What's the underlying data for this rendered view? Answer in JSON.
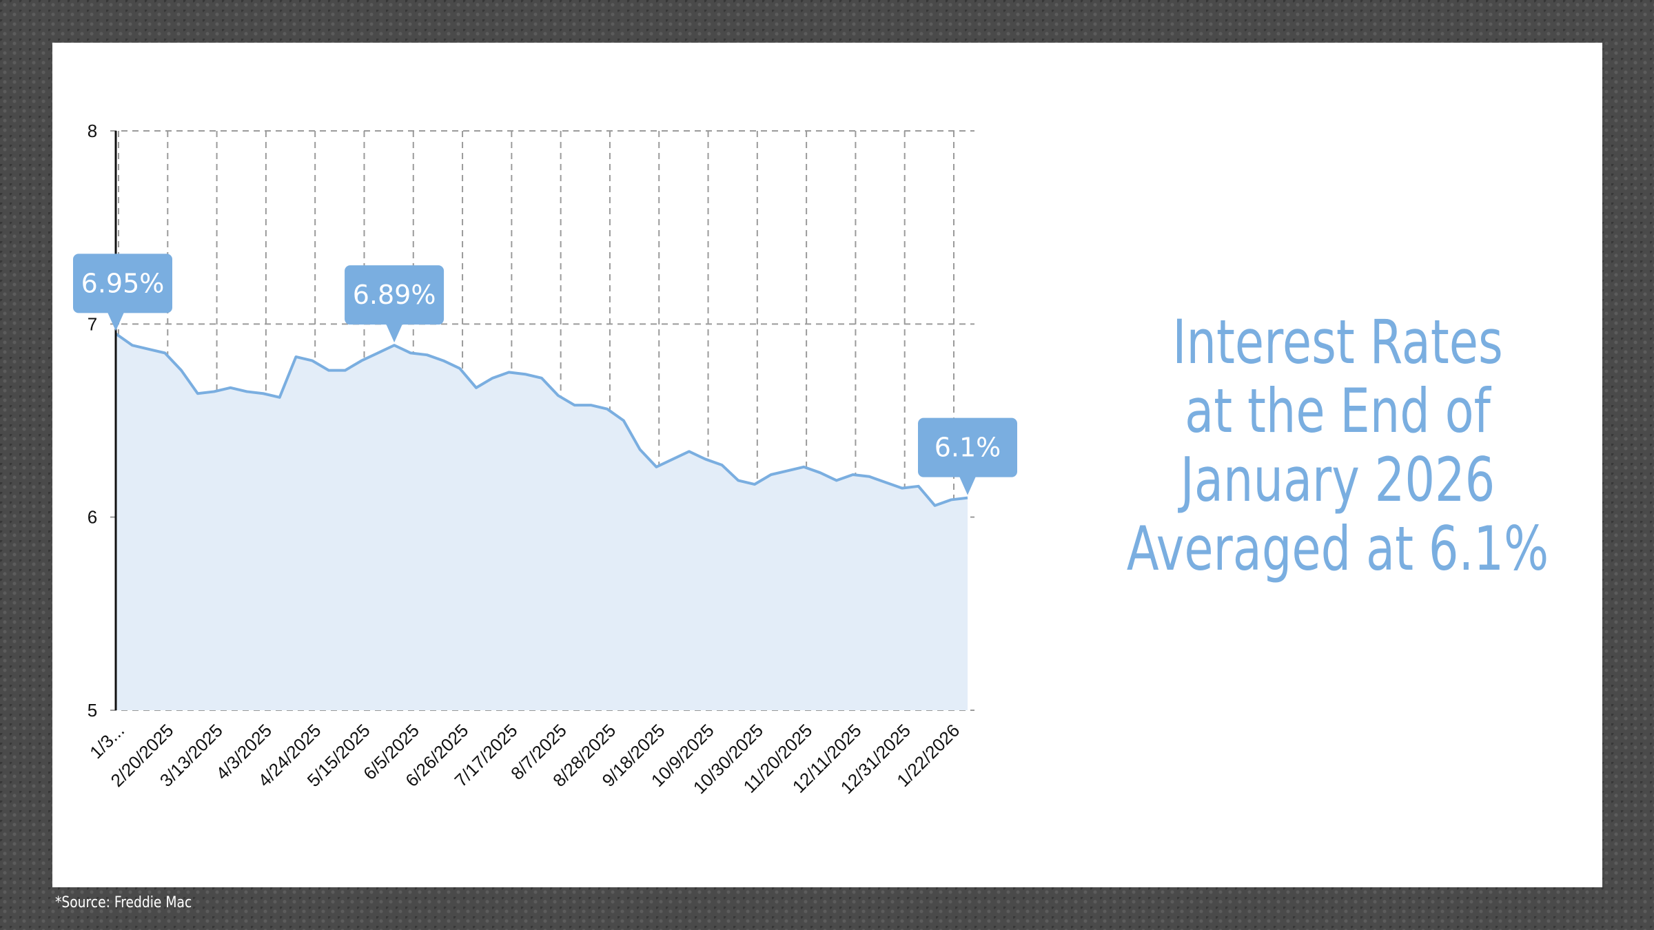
{
  "headline": {
    "line1": "Interest Rates",
    "line2": "at the End of",
    "line3": "January 2026",
    "line4": "Averaged at 6.1%"
  },
  "source": "*Source: Freddie Mac",
  "colors": {
    "line": "#7aaee0",
    "area": "#e3edf8",
    "callout": "#7aaee0",
    "headline": "#7aaee0"
  },
  "chart_data": {
    "type": "area",
    "title": "",
    "xlabel": "",
    "ylabel": "",
    "ylim": [
      5,
      8
    ],
    "yticks": [
      5,
      6,
      7,
      8
    ],
    "grid": true,
    "xtick_labels": [
      "1/3...",
      "2/20/2025",
      "3/13/2025",
      "4/3/2025",
      "4/24/2025",
      "5/15/2025",
      "6/5/2025",
      "6/26/2025",
      "7/17/2025",
      "8/7/2025",
      "8/28/2025",
      "9/18/2025",
      "10/9/2025",
      "10/30/2025",
      "11/20/2025",
      "12/11/2025",
      "12/31/2025",
      "1/22/2026"
    ],
    "values": [
      6.95,
      6.89,
      6.87,
      6.85,
      6.76,
      6.64,
      6.65,
      6.67,
      6.65,
      6.64,
      6.62,
      6.83,
      6.81,
      6.76,
      6.76,
      6.81,
      6.85,
      6.89,
      6.85,
      6.84,
      6.81,
      6.77,
      6.67,
      6.72,
      6.75,
      6.74,
      6.72,
      6.63,
      6.58,
      6.58,
      6.56,
      6.5,
      6.35,
      6.26,
      6.3,
      6.34,
      6.3,
      6.27,
      6.19,
      6.17,
      6.22,
      6.24,
      6.26,
      6.23,
      6.19,
      6.22,
      6.21,
      6.18,
      6.15,
      6.16,
      6.06,
      6.09,
      6.1
    ],
    "callouts": [
      {
        "index": 0,
        "label": "6.95%"
      },
      {
        "index": 17,
        "label": "6.89%"
      },
      {
        "index": 52,
        "label": "6.1%"
      }
    ]
  }
}
